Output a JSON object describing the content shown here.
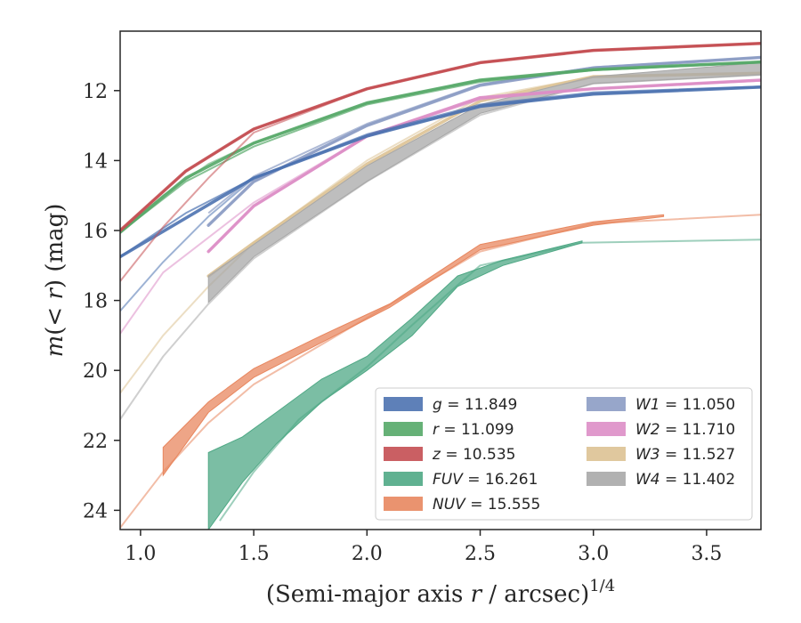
{
  "chart_data": {
    "type": "area",
    "title": "",
    "xlabel": "(Semi-major axis r / arcsec)^{1/4}",
    "xlabel_parts": {
      "main": "(Semi-major axis ",
      "var": "r",
      "rest": " / arcsec)",
      "power": "1/4"
    },
    "ylabel": "m(< r) (mag)",
    "ylabel_parts": {
      "m": "m",
      "open": "(",
      "lt": "< ",
      "r": "r",
      "close": ") (mag)"
    },
    "xlim": [
      0.91,
      3.74
    ],
    "ylim": [
      24.55,
      10.3
    ],
    "y_inverted": true,
    "grid": false,
    "legend_placement": "lower-right",
    "xticks": [
      1.0,
      1.5,
      2.0,
      2.5,
      3.0,
      3.5
    ],
    "xtick_labels": [
      "1.0",
      "1.5",
      "2.0",
      "2.5",
      "3.0",
      "3.5"
    ],
    "yticks": [
      12,
      14,
      16,
      18,
      20,
      22,
      24
    ],
    "ytick_labels": [
      "12",
      "14",
      "16",
      "18",
      "20",
      "22",
      "24"
    ],
    "series": [
      {
        "name": "g",
        "legend_value": "11.849",
        "color": "#4c72b0",
        "band": [
          [
            0.91,
            16.75
          ],
          [
            1.5,
            14.5
          ],
          [
            2.0,
            13.3
          ],
          [
            2.5,
            12.45
          ],
          [
            3.0,
            12.1
          ],
          [
            3.74,
            11.9
          ]
        ],
        "lines": [
          [
            [
              0.91,
              18.3
            ],
            [
              1.1,
              16.9
            ],
            [
              1.3,
              15.6
            ],
            [
              1.5,
              14.5
            ],
            [
              2.0,
              13.3
            ],
            [
              2.5,
              12.45
            ],
            [
              3.0,
              12.1
            ],
            [
              3.74,
              11.9
            ]
          ],
          [
            [
              0.91,
              16.75
            ],
            [
              1.2,
              15.5
            ],
            [
              1.5,
              14.5
            ],
            [
              2.0,
              13.25
            ],
            [
              2.5,
              12.4
            ],
            [
              3.0,
              12.05
            ],
            [
              3.74,
              11.88
            ]
          ]
        ]
      },
      {
        "name": "r",
        "legend_value": "11.099",
        "color": "#55a868",
        "band": [
          [
            0.91,
            16.05
          ],
          [
            1.2,
            14.5
          ],
          [
            1.5,
            13.5
          ],
          [
            2.0,
            12.35
          ],
          [
            2.5,
            11.7
          ],
          [
            3.0,
            11.4
          ],
          [
            3.74,
            11.18
          ]
        ],
        "lines": [
          [
            [
              0.91,
              16.05
            ],
            [
              1.1,
              15.0
            ],
            [
              1.3,
              14.1
            ],
            [
              1.5,
              13.5
            ],
            [
              2.0,
              12.35
            ],
            [
              2.5,
              11.7
            ],
            [
              3.0,
              11.4
            ],
            [
              3.74,
              11.18
            ]
          ],
          [
            [
              0.91,
              16.05
            ],
            [
              1.2,
              14.6
            ],
            [
              1.5,
              13.6
            ],
            [
              2.0,
              12.4
            ],
            [
              2.5,
              11.75
            ],
            [
              3.0,
              11.42
            ],
            [
              3.74,
              11.2
            ]
          ]
        ]
      },
      {
        "name": "z",
        "legend_value": "10.535",
        "color": "#c44e52",
        "band": [
          [
            0.91,
            16.0
          ],
          [
            1.2,
            14.3
          ],
          [
            1.5,
            13.1
          ],
          [
            2.0,
            11.95
          ],
          [
            2.5,
            11.2
          ],
          [
            3.0,
            10.85
          ],
          [
            3.74,
            10.65
          ]
        ],
        "lines": [
          [
            [
              0.91,
              17.45
            ],
            [
              1.1,
              15.9
            ],
            [
              1.3,
              14.5
            ],
            [
              1.5,
              13.2
            ],
            [
              2.0,
              11.95
            ],
            [
              2.5,
              11.2
            ],
            [
              3.0,
              10.85
            ],
            [
              3.74,
              10.65
            ]
          ],
          [
            [
              0.91,
              16.0
            ],
            [
              1.2,
              14.3
            ],
            [
              1.5,
              13.1
            ],
            [
              2.0,
              11.95
            ],
            [
              2.5,
              11.2
            ],
            [
              3.0,
              10.85
            ],
            [
              3.74,
              10.65
            ]
          ]
        ]
      },
      {
        "name": "W1",
        "legend_value": "11.050",
        "color": "#8c9cc4",
        "band": [
          [
            1.3,
            15.85
          ],
          [
            1.5,
            14.6
          ],
          [
            2.0,
            13.0
          ],
          [
            2.5,
            11.85
          ],
          [
            3.0,
            11.35
          ],
          [
            3.74,
            11.05
          ]
        ],
        "lines": [
          [
            [
              1.3,
              15.85
            ],
            [
              1.5,
              14.6
            ],
            [
              2.0,
              13.0
            ],
            [
              2.5,
              11.85
            ],
            [
              3.0,
              11.35
            ],
            [
              3.74,
              11.05
            ]
          ],
          [
            [
              1.3,
              15.5
            ],
            [
              1.5,
              14.45
            ],
            [
              2.0,
              12.95
            ],
            [
              2.5,
              11.82
            ],
            [
              3.0,
              11.33
            ],
            [
              3.74,
              11.05
            ]
          ]
        ]
      },
      {
        "name": "W2",
        "legend_value": "11.710",
        "color": "#dd8ec6",
        "band": [
          [
            1.3,
            16.6
          ],
          [
            1.5,
            15.3
          ],
          [
            2.0,
            13.3
          ],
          [
            2.5,
            12.2
          ],
          [
            3.0,
            11.95
          ],
          [
            3.74,
            11.7
          ]
        ],
        "lines": [
          [
            [
              0.91,
              18.95
            ],
            [
              1.1,
              17.2
            ],
            [
              1.3,
              16.2
            ],
            [
              1.5,
              15.2
            ],
            [
              2.0,
              13.3
            ],
            [
              2.5,
              12.2
            ],
            [
              3.0,
              11.95
            ],
            [
              3.74,
              11.7
            ]
          ],
          [
            [
              1.3,
              16.6
            ],
            [
              1.5,
              15.3
            ],
            [
              2.0,
              13.32
            ],
            [
              2.5,
              12.25
            ],
            [
              3.0,
              11.95
            ],
            [
              3.74,
              11.72
            ]
          ]
        ]
      },
      {
        "name": "W3",
        "legend_value": "11.527",
        "color": "#ddc293",
        "band": [
          [
            1.3,
            17.3
          ],
          [
            1.5,
            16.35
          ],
          [
            2.0,
            14.1
          ],
          [
            2.5,
            12.3
          ],
          [
            3.0,
            11.6
          ],
          [
            3.74,
            11.5
          ]
        ],
        "lines": [
          [
            [
              0.91,
              20.65
            ],
            [
              1.1,
              19.0
            ],
            [
              1.3,
              17.6
            ],
            [
              1.5,
              16.35
            ],
            [
              2.0,
              14.0
            ],
            [
              2.5,
              12.2
            ],
            [
              3.0,
              11.6
            ],
            [
              3.74,
              11.5
            ]
          ]
        ]
      },
      {
        "name": "W4",
        "legend_value": "11.402",
        "color": "#a8a8a8",
        "band": [
          [
            1.3,
            17.3
          ],
          [
            1.5,
            16.4
          ],
          [
            2.0,
            14.15
          ],
          [
            2.5,
            12.4
          ],
          [
            3.0,
            11.6
          ],
          [
            3.74,
            11.2
          ]
        ],
        "band2": [
          [
            1.3,
            18.05
          ],
          [
            1.5,
            16.75
          ],
          [
            2.0,
            14.6
          ],
          [
            2.5,
            12.65
          ],
          [
            3.0,
            11.8
          ],
          [
            3.74,
            11.55
          ]
        ],
        "lines": [
          [
            [
              0.91,
              21.4
            ],
            [
              1.1,
              19.6
            ],
            [
              1.3,
              18.1
            ],
            [
              1.5,
              16.8
            ],
            [
              2.0,
              14.6
            ],
            [
              2.5,
              12.7
            ],
            [
              3.0,
              11.8
            ],
            [
              3.74,
              11.55
            ]
          ]
        ]
      },
      {
        "name": "FUV",
        "legend_value": "16.261",
        "color": "#4fa885",
        "band": [
          [
            1.3,
            22.35
          ],
          [
            1.45,
            21.9
          ],
          [
            1.6,
            21.2
          ],
          [
            1.8,
            20.25
          ],
          [
            2.0,
            19.6
          ],
          [
            2.2,
            18.5
          ],
          [
            2.4,
            17.3
          ],
          [
            2.6,
            16.85
          ],
          [
            2.95,
            16.3
          ]
        ],
        "band2": [
          [
            1.3,
            24.55
          ],
          [
            1.45,
            23.2
          ],
          [
            1.6,
            22.1
          ],
          [
            1.8,
            20.9
          ],
          [
            2.0,
            20.0
          ],
          [
            2.2,
            19.0
          ],
          [
            2.4,
            17.6
          ],
          [
            2.6,
            17.0
          ],
          [
            2.95,
            16.35
          ]
        ],
        "lines": [
          [
            [
              1.35,
              24.3
            ],
            [
              1.5,
              22.9
            ],
            [
              1.7,
              21.4
            ],
            [
              2.0,
              19.9
            ],
            [
              2.2,
              18.7
            ],
            [
              2.5,
              17.0
            ],
            [
              2.95,
              16.35
            ],
            [
              3.74,
              16.26
            ]
          ]
        ]
      },
      {
        "name": "NUV",
        "legend_value": "15.555",
        "color": "#e8875f",
        "band": [
          [
            1.1,
            22.2
          ],
          [
            1.3,
            20.9
          ],
          [
            1.5,
            19.95
          ],
          [
            1.8,
            19.0
          ],
          [
            2.1,
            18.1
          ],
          [
            2.5,
            16.4
          ],
          [
            3.0,
            15.75
          ],
          [
            3.31,
            15.55
          ]
        ],
        "band2": [
          [
            1.1,
            23.0
          ],
          [
            1.3,
            21.2
          ],
          [
            1.5,
            20.2
          ],
          [
            1.8,
            19.2
          ],
          [
            2.1,
            18.2
          ],
          [
            2.5,
            16.55
          ],
          [
            3.0,
            15.85
          ],
          [
            3.31,
            15.6
          ]
        ],
        "lines": [
          [
            [
              0.91,
              24.5
            ],
            [
              1.1,
              22.9
            ],
            [
              1.3,
              21.5
            ],
            [
              1.5,
              20.4
            ],
            [
              2.0,
              18.5
            ],
            [
              2.5,
              16.6
            ],
            [
              3.0,
              15.8
            ],
            [
              3.74,
              15.55
            ]
          ]
        ]
      }
    ],
    "legend_order": [
      "g",
      "r",
      "z",
      "FUV",
      "NUV",
      "W1",
      "W2",
      "W3",
      "W4"
    ]
  }
}
